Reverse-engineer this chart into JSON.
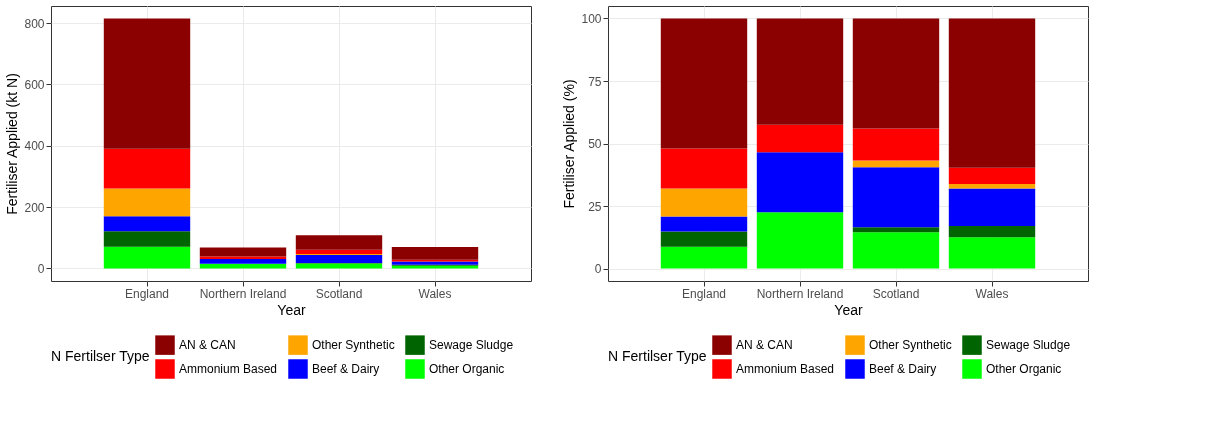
{
  "chart_data": [
    {
      "type": "bar",
      "stacked": true,
      "xlabel": "Year",
      "ylabel": "Fertiliser Applied  (kt N)",
      "legend_title": "N Fertilser Type",
      "legend": "bottom",
      "grid": true,
      "categories": [
        "England",
        "Northern Ireland",
        "Scotland",
        "Wales"
      ],
      "ylim": [
        -41,
        856
      ],
      "yticks": [
        0,
        200,
        400,
        600,
        800
      ],
      "series": [
        {
          "name": "Other Organic",
          "color": "#00ff00",
          "values": [
            71,
            15,
            16,
            9
          ]
        },
        {
          "name": "Sewage Sludge",
          "color": "#006400",
          "values": [
            50,
            0,
            2,
            3
          ]
        },
        {
          "name": "Beef & Dairy",
          "color": "#0000ff",
          "values": [
            49,
            16,
            26,
            11
          ]
        },
        {
          "name": "Other Synthetic",
          "color": "#ffa500",
          "values": [
            91,
            0,
            3,
            null
          ]
        },
        {
          "name": "Ammonium Based",
          "color": "#ff0000",
          "values": [
            129,
            8,
            14,
            5
          ]
        },
        {
          "name": "AN & CAN",
          "color": "#8b0000",
          "values": [
            425,
            29,
            47,
            42
          ]
        }
      ]
    },
    {
      "type": "bar",
      "stacked": true,
      "xlabel": "Year",
      "ylabel": "Fertiliser Applied  (%)",
      "legend_title": "N Fertilser Type",
      "legend": "bottom",
      "grid": true,
      "categories": [
        "England",
        "Northern Ireland",
        "Scotland",
        "Wales"
      ],
      "ylim": [
        -5,
        105
      ],
      "yticks": [
        0,
        25,
        50,
        75,
        100
      ],
      "series": [
        {
          "name": "Other Organic",
          "color": "#00ff00",
          "values": [
            8.7,
            22.5,
            14.5,
            12.5
          ]
        },
        {
          "name": "Sewage Sludge",
          "color": "#006400",
          "values": [
            6.1,
            0,
            2,
            4.5
          ]
        },
        {
          "name": "Beef & Dairy",
          "color": "#0000ff",
          "values": [
            6,
            24,
            24,
            15
          ]
        },
        {
          "name": "Other Synthetic",
          "color": "#ffa500",
          "values": [
            11.2,
            0,
            2.7,
            1.8
          ]
        },
        {
          "name": "Ammonium Based",
          "color": "#ff0000",
          "values": [
            16,
            11,
            12.8,
            6.5
          ]
        },
        {
          "name": "AN & CAN",
          "color": "#8b0000",
          "values": [
            52,
            42.5,
            44,
            59.7
          ]
        }
      ]
    }
  ]
}
